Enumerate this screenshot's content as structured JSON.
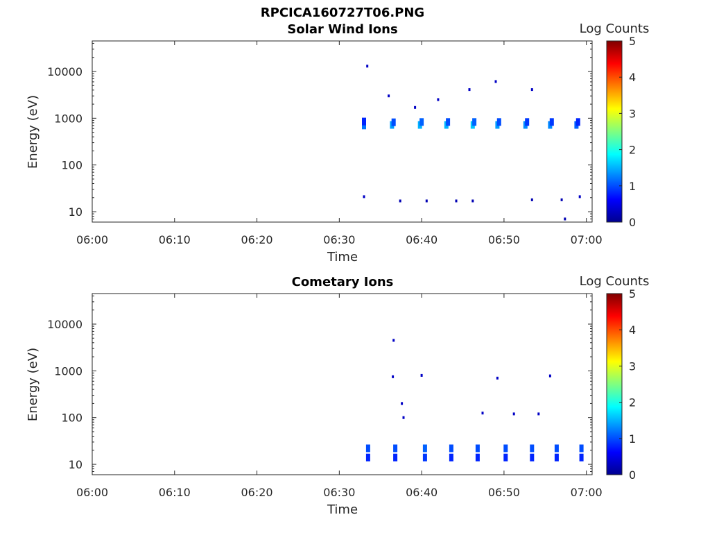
{
  "figure_title": "RPCICA160727T06.PNG",
  "chart_data": [
    {
      "type": "heatmap",
      "title": "Solar Wind Ions",
      "xlabel": "Time",
      "ylabel": "Energy (eV)",
      "x_ticks": [
        "06:00",
        "06:10",
        "06:20",
        "06:30",
        "06:40",
        "06:50",
        "07:00"
      ],
      "xlim_minutes": [
        0,
        60.7
      ],
      "y_scale": "log",
      "y_ticks": [
        "10",
        "100",
        "1000",
        "10000"
      ],
      "ylim": [
        6,
        45000
      ],
      "colorbar": {
        "label": "Log Counts",
        "ticks": [
          "0",
          "1",
          "2",
          "3",
          "4",
          "5"
        ],
        "range": [
          0,
          5
        ],
        "colormap": "jet"
      },
      "cells": [
        {
          "t": 33.0,
          "e": 700,
          "v": 1.2
        },
        {
          "t": 33.0,
          "e": 850,
          "v": 0.8
        },
        {
          "t": 36.4,
          "e": 720,
          "v": 1.4
        },
        {
          "t": 36.6,
          "e": 820,
          "v": 1.0
        },
        {
          "t": 39.8,
          "e": 720,
          "v": 1.5
        },
        {
          "t": 40.0,
          "e": 830,
          "v": 1.1
        },
        {
          "t": 43.0,
          "e": 720,
          "v": 1.5
        },
        {
          "t": 43.2,
          "e": 830,
          "v": 1.0
        },
        {
          "t": 46.2,
          "e": 720,
          "v": 1.6
        },
        {
          "t": 46.4,
          "e": 830,
          "v": 1.1
        },
        {
          "t": 49.2,
          "e": 720,
          "v": 1.4
        },
        {
          "t": 49.4,
          "e": 830,
          "v": 1.0
        },
        {
          "t": 52.6,
          "e": 720,
          "v": 1.3
        },
        {
          "t": 52.8,
          "e": 830,
          "v": 0.9
        },
        {
          "t": 55.6,
          "e": 720,
          "v": 1.3
        },
        {
          "t": 55.8,
          "e": 830,
          "v": 0.9
        },
        {
          "t": 58.8,
          "e": 720,
          "v": 1.1
        },
        {
          "t": 59.0,
          "e": 830,
          "v": 0.8
        },
        {
          "t": 33.4,
          "e": 13000,
          "v": 0.3
        },
        {
          "t": 36.0,
          "e": 3000,
          "v": 0.3
        },
        {
          "t": 39.2,
          "e": 1700,
          "v": 0.3
        },
        {
          "t": 42.0,
          "e": 2500,
          "v": 0.3
        },
        {
          "t": 45.8,
          "e": 4100,
          "v": 0.3
        },
        {
          "t": 49.0,
          "e": 6100,
          "v": 0.3
        },
        {
          "t": 53.4,
          "e": 4100,
          "v": 0.3
        },
        {
          "t": 33.0,
          "e": 21,
          "v": 0.3
        },
        {
          "t": 37.4,
          "e": 17,
          "v": 0.2
        },
        {
          "t": 40.6,
          "e": 17,
          "v": 0.2
        },
        {
          "t": 44.2,
          "e": 17,
          "v": 0.2
        },
        {
          "t": 46.2,
          "e": 17,
          "v": 0.2
        },
        {
          "t": 53.4,
          "e": 18,
          "v": 0.2
        },
        {
          "t": 57.0,
          "e": 18,
          "v": 0.2
        },
        {
          "t": 59.2,
          "e": 21,
          "v": 0.3
        },
        {
          "t": 57.4,
          "e": 7,
          "v": 0.2
        }
      ]
    },
    {
      "type": "heatmap",
      "title": "Cometary Ions",
      "xlabel": "Time",
      "ylabel": "Energy (eV)",
      "x_ticks": [
        "06:00",
        "06:10",
        "06:20",
        "06:30",
        "06:40",
        "06:50",
        "07:00"
      ],
      "xlim_minutes": [
        0,
        60.7
      ],
      "y_scale": "log",
      "y_ticks": [
        "10",
        "100",
        "1000",
        "10000"
      ],
      "ylim": [
        6,
        45000
      ],
      "colorbar": {
        "label": "Log Counts",
        "ticks": [
          "0",
          "1",
          "2",
          "3",
          "4",
          "5"
        ],
        "range": [
          0,
          5
        ],
        "colormap": "jet"
      },
      "cells": [
        {
          "t": 33.5,
          "e": 14,
          "v": 0.8
        },
        {
          "t": 33.5,
          "e": 22,
          "v": 1.0
        },
        {
          "t": 36.8,
          "e": 14,
          "v": 0.8
        },
        {
          "t": 36.8,
          "e": 22,
          "v": 1.0
        },
        {
          "t": 40.4,
          "e": 14,
          "v": 0.9
        },
        {
          "t": 40.4,
          "e": 22,
          "v": 1.1
        },
        {
          "t": 43.6,
          "e": 14,
          "v": 0.8
        },
        {
          "t": 43.6,
          "e": 22,
          "v": 1.0
        },
        {
          "t": 46.8,
          "e": 14,
          "v": 0.8
        },
        {
          "t": 46.8,
          "e": 22,
          "v": 1.0
        },
        {
          "t": 50.2,
          "e": 14,
          "v": 0.8
        },
        {
          "t": 50.2,
          "e": 22,
          "v": 1.0
        },
        {
          "t": 53.4,
          "e": 14,
          "v": 0.8
        },
        {
          "t": 53.4,
          "e": 22,
          "v": 1.0
        },
        {
          "t": 56.4,
          "e": 14,
          "v": 0.8
        },
        {
          "t": 56.4,
          "e": 22,
          "v": 1.0
        },
        {
          "t": 59.4,
          "e": 14,
          "v": 0.8
        },
        {
          "t": 59.4,
          "e": 22,
          "v": 1.0
        },
        {
          "t": 36.5,
          "e": 750,
          "v": 0.3
        },
        {
          "t": 40.0,
          "e": 800,
          "v": 0.3
        },
        {
          "t": 49.2,
          "e": 700,
          "v": 0.3
        },
        {
          "t": 55.6,
          "e": 780,
          "v": 0.3
        },
        {
          "t": 36.6,
          "e": 4500,
          "v": 0.3
        },
        {
          "t": 37.6,
          "e": 200,
          "v": 0.3
        },
        {
          "t": 37.8,
          "e": 100,
          "v": 0.3
        },
        {
          "t": 47.4,
          "e": 125,
          "v": 0.3
        },
        {
          "t": 51.2,
          "e": 120,
          "v": 0.3
        },
        {
          "t": 54.2,
          "e": 120,
          "v": 0.3
        }
      ]
    }
  ]
}
